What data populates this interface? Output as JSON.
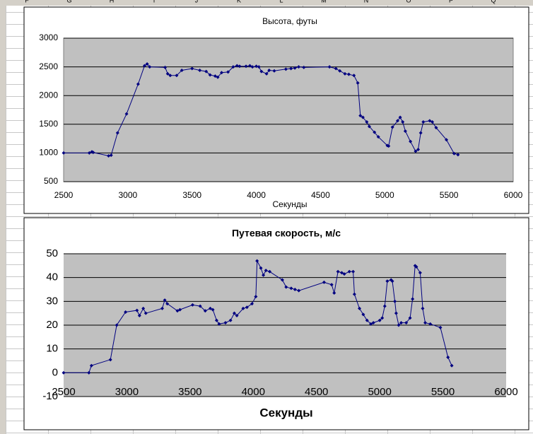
{
  "sheet": {
    "columns": [
      "F",
      "G",
      "H",
      "I",
      "J",
      "K",
      "L",
      "M",
      "N",
      "O",
      "P",
      "Q"
    ]
  },
  "chart_data": [
    {
      "type": "line",
      "title": "Высота, футы",
      "x_label": "Секунды",
      "xlim": [
        2500,
        6000
      ],
      "xticks": [
        2500,
        3000,
        3500,
        4000,
        4500,
        5000,
        5500,
        6000
      ],
      "ylim": [
        500,
        3000
      ],
      "yticks": [
        500,
        1000,
        1500,
        2000,
        2500,
        3000
      ],
      "grid": true,
      "color": "#000080",
      "x": [
        2500,
        2700,
        2720,
        2730,
        2850,
        2870,
        2920,
        2990,
        3080,
        3130,
        3150,
        3170,
        3290,
        3310,
        3330,
        3380,
        3420,
        3500,
        3560,
        3610,
        3640,
        3680,
        3700,
        3730,
        3780,
        3820,
        3850,
        3870,
        3920,
        3950,
        3970,
        4000,
        4020,
        4040,
        4080,
        4100,
        4140,
        4230,
        4270,
        4300,
        4330,
        4370,
        4570,
        4620,
        4650,
        4690,
        4720,
        4760,
        4790,
        4810,
        4830,
        4860,
        4880,
        4920,
        4950,
        5020,
        5030,
        5060,
        5100,
        5120,
        5140,
        5160,
        5200,
        5240,
        5260,
        5280,
        5300,
        5350,
        5370,
        5400,
        5480,
        5540,
        5570
      ],
      "values": [
        1000,
        1000,
        1020,
        1010,
        950,
        960,
        1350,
        1680,
        2200,
        2520,
        2550,
        2500,
        2490,
        2380,
        2350,
        2350,
        2440,
        2470,
        2440,
        2420,
        2360,
        2340,
        2320,
        2400,
        2410,
        2500,
        2520,
        2510,
        2510,
        2520,
        2500,
        2510,
        2500,
        2420,
        2380,
        2440,
        2430,
        2460,
        2470,
        2480,
        2500,
        2490,
        2500,
        2470,
        2430,
        2380,
        2370,
        2350,
        2220,
        1650,
        1620,
        1540,
        1460,
        1360,
        1280,
        1130,
        1120,
        1450,
        1560,
        1620,
        1540,
        1380,
        1200,
        1030,
        1060,
        1350,
        1540,
        1560,
        1540,
        1440,
        1230,
        990,
        970
      ]
    },
    {
      "type": "line",
      "title": "Путевая скорость, м/с",
      "x_label": "Секунды",
      "xlim": [
        2500,
        6000
      ],
      "xticks": [
        2500,
        3000,
        3500,
        4000,
        4500,
        5000,
        5500,
        6000
      ],
      "ylim": [
        -10,
        50
      ],
      "yticks": [
        -10,
        0,
        10,
        20,
        30,
        40,
        50
      ],
      "grid": true,
      "color": "#000080",
      "x": [
        2500,
        2700,
        2720,
        2870,
        2920,
        2990,
        3080,
        3100,
        3130,
        3150,
        3280,
        3300,
        3320,
        3400,
        3420,
        3520,
        3580,
        3620,
        3660,
        3680,
        3710,
        3730,
        3780,
        3820,
        3850,
        3870,
        3920,
        3950,
        3990,
        4020,
        4030,
        4060,
        4080,
        4100,
        4130,
        4230,
        4260,
        4300,
        4330,
        4360,
        4560,
        4620,
        4640,
        4670,
        4700,
        4720,
        4760,
        4790,
        4800,
        4840,
        4870,
        4900,
        4930,
        4950,
        5000,
        5020,
        5040,
        5060,
        5090,
        5100,
        5120,
        5130,
        5150,
        5170,
        5210,
        5240,
        5260,
        5280,
        5290,
        5320,
        5340,
        5360,
        5400,
        5480,
        5540,
        5570
      ],
      "values": [
        0,
        0,
        3,
        5.5,
        20,
        25.5,
        26.2,
        24,
        27,
        25,
        27,
        30.5,
        29,
        26,
        26.5,
        28.5,
        28,
        26,
        27,
        26.5,
        22,
        20.5,
        21,
        22,
        25,
        24,
        27,
        27.5,
        29,
        32,
        47,
        44,
        41,
        43,
        42.5,
        39,
        36,
        35.5,
        35,
        34.5,
        38,
        37,
        33.5,
        42.5,
        42,
        41.5,
        42.5,
        42.5,
        33,
        27,
        24.5,
        22,
        20.5,
        21,
        22,
        23,
        28,
        38.5,
        39,
        38.5,
        30,
        25,
        20,
        21,
        21,
        23,
        31,
        45,
        44.5,
        42,
        27,
        21,
        20.5,
        19,
        6.5,
        3
      ]
    }
  ]
}
